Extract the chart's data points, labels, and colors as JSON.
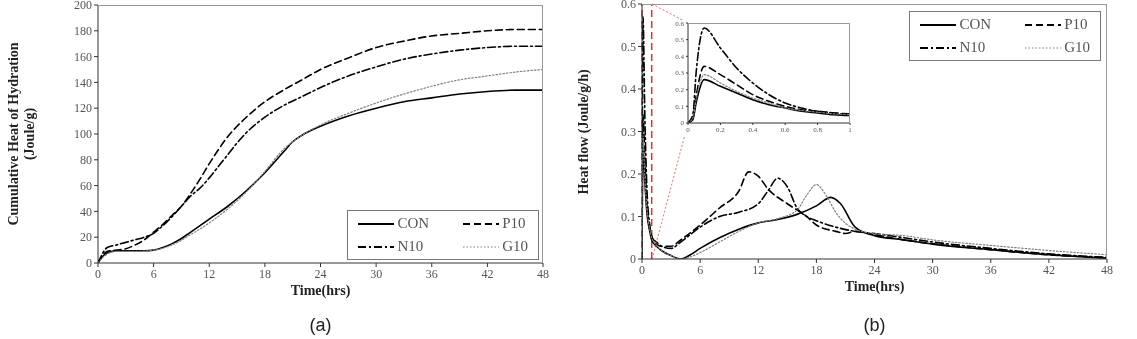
{
  "chart_data": [
    {
      "type": "line",
      "ylabel": "Cumulative Heat of Hydration (Joule/g)",
      "xlabel": "Time(hrs)",
      "annotations": [
        "(a)"
      ],
      "xlim": [
        0,
        48
      ],
      "xticks": [
        0,
        6,
        12,
        18,
        24,
        30,
        36,
        42,
        48
      ],
      "ylim": [
        0,
        200
      ],
      "yticks": [
        0,
        20,
        40,
        60,
        80,
        100,
        120,
        140,
        160,
        180,
        200
      ],
      "legend": "bottom right",
      "series": [
        {
          "name": "CON",
          "color": "#000000",
          "line_style": "solid",
          "x": [
            0,
            0.5,
            1,
            2,
            3,
            5,
            6,
            7,
            8,
            9,
            10,
            12,
            14,
            16,
            18,
            20,
            21,
            22,
            24,
            27,
            30,
            33,
            36,
            39,
            42,
            45,
            48
          ],
          "values": [
            0,
            5,
            8,
            9.5,
            9.5,
            9.5,
            10,
            12,
            15,
            19,
            24,
            34,
            44,
            56,
            70,
            86,
            94,
            99,
            106,
            114,
            120,
            125,
            128,
            131,
            133,
            134,
            134
          ]
        },
        {
          "name": "P10",
          "color": "#000000",
          "line_style": "dashed",
          "x": [
            0,
            1,
            2,
            3,
            4,
            5,
            6,
            7,
            8,
            9,
            10,
            11,
            12,
            13,
            14,
            15,
            16,
            18,
            20,
            22,
            24,
            27,
            30,
            33,
            36,
            39,
            42,
            45,
            48
          ],
          "values": [
            0,
            9,
            10,
            11,
            14,
            18,
            24,
            30,
            37,
            44,
            54,
            65,
            77,
            88,
            98,
            106,
            113,
            125,
            134,
            142,
            150,
            159,
            167,
            172,
            176,
            178,
            180,
            181,
            181
          ]
        },
        {
          "name": "N10",
          "color": "#000000",
          "line_style": "dashdot",
          "x": [
            0,
            1,
            2,
            3,
            4,
            5,
            6,
            7,
            8,
            9,
            10,
            11,
            12,
            13,
            14,
            15,
            16,
            18,
            20,
            22,
            24,
            27,
            30,
            33,
            36,
            39,
            42,
            45,
            48
          ],
          "values": [
            0,
            12,
            14,
            16,
            18,
            20,
            23,
            29,
            36,
            44,
            52,
            58,
            66,
            75,
            84,
            93,
            101,
            113,
            122,
            129,
            136,
            145,
            152,
            158,
            162,
            165,
            167,
            168,
            168
          ]
        },
        {
          "name": "G10",
          "color": "#808080",
          "line_style": "dotted",
          "x": [
            0,
            1,
            2,
            4,
            6,
            8,
            10,
            12,
            14,
            16,
            18,
            20,
            22,
            24,
            27,
            30,
            33,
            36,
            39,
            42,
            45,
            48
          ],
          "values": [
            0,
            7,
            9,
            9,
            10,
            14,
            22,
            31,
            42,
            55,
            71,
            88,
            99,
            107,
            116,
            124,
            131,
            137,
            142,
            145,
            148,
            150
          ]
        }
      ]
    },
    {
      "type": "line",
      "ylabel": "Heat flow (Joule/g/h)",
      "xlabel": "Time(hrs)",
      "annotations": [
        "(b)"
      ],
      "xlim": [
        0,
        48
      ],
      "xticks": [
        0,
        6,
        12,
        18,
        24,
        30,
        36,
        42,
        48
      ],
      "ylim": [
        0,
        0.6
      ],
      "yticks": [
        0,
        0.1,
        0.2,
        0.3,
        0.4,
        0.5,
        0.6
      ],
      "legend": "top right",
      "ref_lines": [
        {
          "axis": "x",
          "value": 0,
          "color": "#e03030",
          "line_style": "dashed"
        },
        {
          "axis": "x",
          "value": 1,
          "color": "#e03030",
          "line_style": "dashed"
        }
      ],
      "series": [
        {
          "name": "CON",
          "color": "#000000",
          "line_style": "solid",
          "x": [
            0,
            0.1,
            0.3,
            0.5,
            0.8,
            1,
            1.5,
            2,
            3,
            4,
            5,
            6,
            8,
            10,
            12,
            14,
            16,
            18,
            19.5,
            20.5,
            22,
            24,
            27,
            30,
            36,
            42,
            48
          ],
          "values": [
            0,
            0.26,
            0.18,
            0.11,
            0.065,
            0.045,
            0.03,
            0.02,
            0.008,
            0,
            0.01,
            0.025,
            0.05,
            0.07,
            0.085,
            0.093,
            0.105,
            0.125,
            0.145,
            0.13,
            0.075,
            0.055,
            0.045,
            0.035,
            0.022,
            0.01,
            0.002
          ]
        },
        {
          "name": "P10",
          "color": "#000000",
          "line_style": "dashed",
          "x": [
            0,
            0.1,
            0.3,
            0.5,
            0.8,
            1,
            1.5,
            2,
            3,
            4,
            6,
            8,
            10,
            11,
            12,
            13,
            15,
            17,
            18,
            20,
            21,
            22,
            24,
            27,
            30,
            36,
            42,
            48
          ],
          "values": [
            0,
            0.34,
            0.23,
            0.13,
            0.075,
            0.055,
            0.035,
            0.03,
            0.03,
            0.045,
            0.08,
            0.12,
            0.16,
            0.205,
            0.195,
            0.165,
            0.13,
            0.1,
            0.08,
            0.065,
            0.06,
            0.065,
            0.057,
            0.045,
            0.036,
            0.022,
            0.01,
            0.003
          ]
        },
        {
          "name": "N10",
          "color": "#000000",
          "line_style": "dashdot",
          "x": [
            0,
            0.1,
            0.3,
            0.5,
            0.8,
            1,
            1.5,
            2,
            3,
            4,
            6,
            8,
            10,
            12,
            13,
            14,
            15,
            16,
            17,
            18,
            20,
            22,
            24,
            27,
            30,
            36,
            42,
            48
          ],
          "values": [
            0,
            0.57,
            0.33,
            0.17,
            0.08,
            0.05,
            0.04,
            0.03,
            0.025,
            0.04,
            0.075,
            0.1,
            0.11,
            0.13,
            0.16,
            0.19,
            0.17,
            0.12,
            0.1,
            0.09,
            0.075,
            0.065,
            0.06,
            0.05,
            0.04,
            0.025,
            0.012,
            0.004
          ]
        },
        {
          "name": "G10",
          "color": "#808080",
          "line_style": "dotted",
          "x": [
            0,
            0.1,
            0.3,
            0.5,
            0.8,
            1,
            1.5,
            2,
            3,
            4,
            5,
            6,
            8,
            10,
            12,
            14,
            16,
            17,
            18,
            19,
            20,
            22,
            24,
            27,
            30,
            36,
            42,
            48
          ],
          "values": [
            0,
            0.29,
            0.19,
            0.12,
            0.07,
            0.05,
            0.032,
            0.02,
            0.008,
            0,
            0.005,
            0.015,
            0.04,
            0.065,
            0.085,
            0.095,
            0.115,
            0.15,
            0.175,
            0.15,
            0.11,
            0.07,
            0.06,
            0.055,
            0.045,
            0.032,
            0.02,
            0.01
          ]
        }
      ]
    },
    {
      "type": "line",
      "xlim": [
        0,
        1
      ],
      "xticks": [
        0,
        0.2,
        0.4,
        0.6,
        0.8,
        1
      ],
      "ylim": [
        0,
        0.6
      ],
      "yticks": [
        0,
        0.1,
        0.2,
        0.3,
        0.4,
        0.5,
        0.6
      ],
      "series": [
        {
          "color": "#000000",
          "line_style": "solid",
          "x": [
            0,
            0.03,
            0.05,
            0.1,
            0.2,
            0.3,
            0.4,
            0.5,
            0.6,
            0.7,
            0.8,
            0.9,
            1
          ],
          "values": [
            0,
            0.02,
            0.12,
            0.26,
            0.22,
            0.18,
            0.14,
            0.11,
            0.09,
            0.07,
            0.06,
            0.05,
            0.045
          ]
        },
        {
          "color": "#000000",
          "line_style": "dashed",
          "x": [
            0,
            0.03,
            0.05,
            0.1,
            0.2,
            0.3,
            0.4,
            0.5,
            0.6,
            0.7,
            0.8,
            0.9,
            1
          ],
          "values": [
            0,
            0.03,
            0.16,
            0.34,
            0.29,
            0.23,
            0.17,
            0.13,
            0.1,
            0.08,
            0.07,
            0.06,
            0.055
          ]
        },
        {
          "color": "#000000",
          "line_style": "dashdot",
          "x": [
            0,
            0.03,
            0.05,
            0.1,
            0.2,
            0.3,
            0.4,
            0.5,
            0.6,
            0.7,
            0.8,
            0.9,
            1
          ],
          "values": [
            0,
            0.05,
            0.3,
            0.57,
            0.45,
            0.33,
            0.24,
            0.17,
            0.12,
            0.09,
            0.07,
            0.06,
            0.05
          ]
        },
        {
          "color": "#808080",
          "line_style": "dotted",
          "x": [
            0,
            0.03,
            0.05,
            0.1,
            0.2,
            0.3,
            0.4,
            0.5,
            0.6,
            0.7,
            0.8,
            0.9,
            1
          ],
          "values": [
            0,
            0.03,
            0.14,
            0.29,
            0.24,
            0.19,
            0.15,
            0.12,
            0.09,
            0.075,
            0.065,
            0.055,
            0.05
          ]
        }
      ]
    }
  ]
}
